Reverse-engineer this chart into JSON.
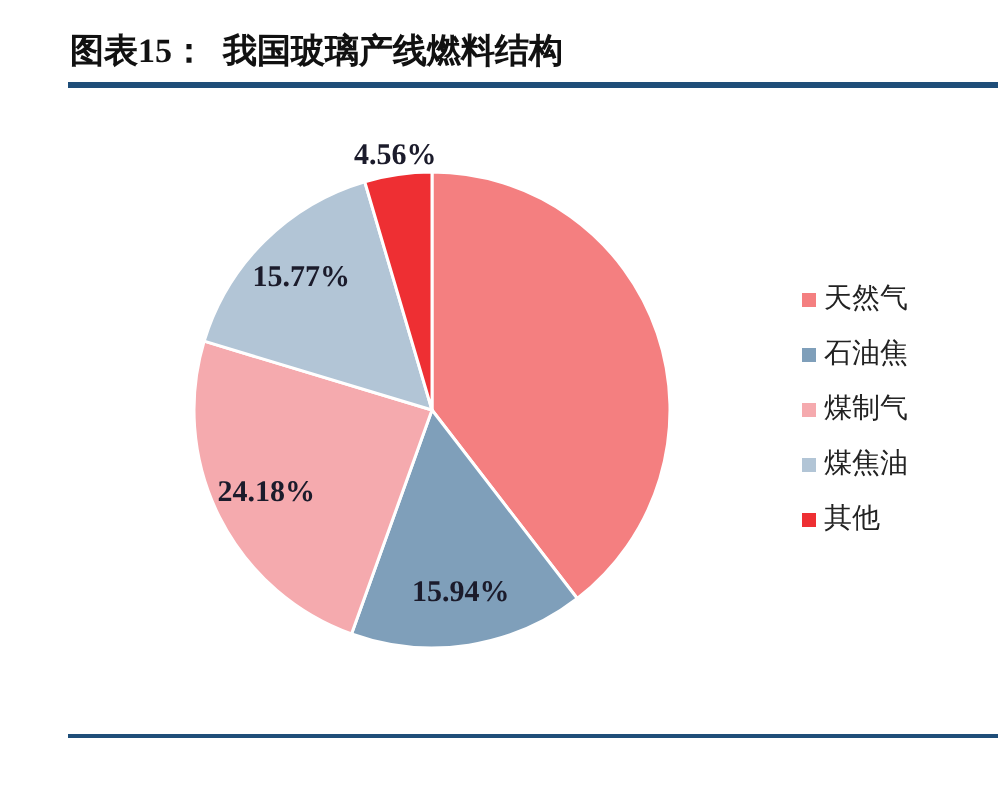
{
  "chart_data": {
    "type": "pie",
    "title": "图表15：  我国玻璃产线燃料结构",
    "categories": [
      "天然气",
      "石油焦",
      "煤制气",
      "煤焦油",
      "其他"
    ],
    "values": [
      39.55,
      15.94,
      24.18,
      15.77,
      4.56
    ],
    "colors": [
      "#f47f80",
      "#7f9fba",
      "#f5aaae",
      "#b2c5d6",
      "#ee2f33"
    ],
    "value_labels": [
      null,
      "15.94%",
      "24.18%",
      "15.77%",
      "4.56%"
    ],
    "legend": "right"
  }
}
